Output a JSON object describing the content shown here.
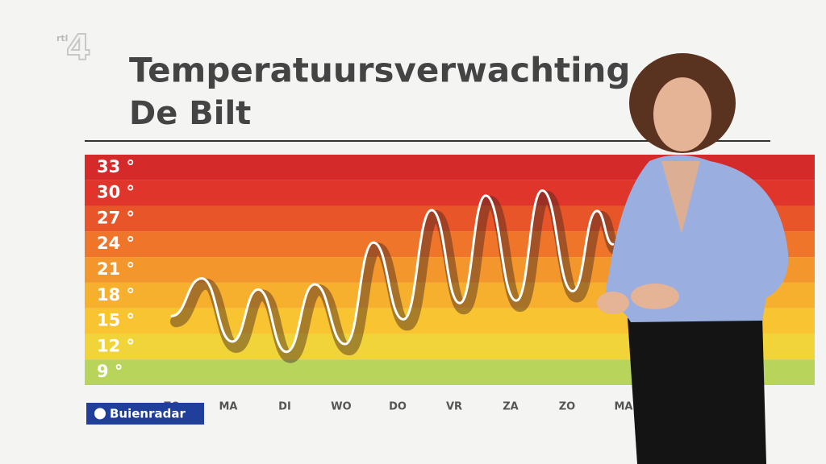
{
  "chart_data": {
    "type": "line",
    "title": "Temperatuursverwachting",
    "subtitle": "De Bilt",
    "x": [
      0,
      0.53,
      1.07,
      1.53,
      2.03,
      2.53,
      3.07,
      3.57,
      4.1,
      4.6,
      5.1,
      5.56,
      6.1,
      6.56,
      7.1,
      7.53,
      7.81
    ],
    "values": [
      15.6,
      20,
      12.6,
      18.7,
      11.4,
      19.3,
      12.3,
      24.2,
      15.2,
      28,
      17.1,
      29.7,
      17.4,
      30.3,
      18.5,
      27.9,
      24
    ],
    "color": "#ffffff",
    "xlim": [
      0,
      8
    ],
    "xticks": [
      {
        "value": 0,
        "label": "ZO"
      },
      {
        "value": 1,
        "label": "MA"
      },
      {
        "value": 2,
        "label": "DI"
      },
      {
        "value": 3,
        "label": "WO"
      },
      {
        "value": 4,
        "label": "DO"
      },
      {
        "value": 5,
        "label": "VR"
      },
      {
        "value": 6,
        "label": "ZA"
      },
      {
        "value": 7,
        "label": "ZO"
      },
      {
        "value": 8,
        "label": "MA"
      }
    ],
    "ylim": [
      7.5,
      34.5
    ],
    "yticks": [
      {
        "value": 33,
        "label": "33 °"
      },
      {
        "value": 30,
        "label": "30 °"
      },
      {
        "value": 27,
        "label": "27 °"
      },
      {
        "value": 24,
        "label": "24 °"
      },
      {
        "value": 21,
        "label": "21 °"
      },
      {
        "value": 18,
        "label": "18 °"
      },
      {
        "value": 15,
        "label": "15 °"
      },
      {
        "value": 12,
        "label": "12 °"
      },
      {
        "value": 9,
        "label": "9 °"
      }
    ],
    "band_colors": [
      "#d42a2a",
      "#e0352a",
      "#e85528",
      "#ee752a",
      "#f3962c",
      "#f6b02e",
      "#f8c431",
      "#f1d43a",
      "#b9d45a"
    ],
    "grid": false
  },
  "branding": {
    "source": "Buienradar",
    "channel_prefix": "rtl",
    "channel_number": "4"
  }
}
